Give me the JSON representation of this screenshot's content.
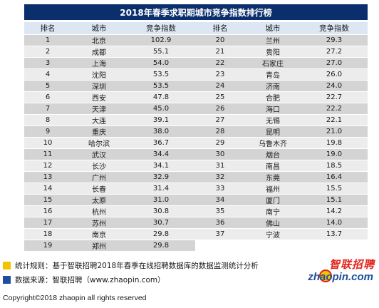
{
  "title": "2018年春季求职期城市竞争指数排行榜",
  "headers": [
    "排名",
    "城市",
    "竞争指数",
    "排名",
    "城市",
    "竞争指数"
  ],
  "rows": [
    {
      "rank": "1",
      "city": "北京",
      "score": "102.9",
      "rank2": "20",
      "city2": "兰州",
      "score2": "29.3"
    },
    {
      "rank": "2",
      "city": "成都",
      "score": "55.1",
      "rank2": "21",
      "city2": "贵阳",
      "score2": "27.2"
    },
    {
      "rank": "3",
      "city": "上海",
      "score": "54.0",
      "rank2": "22",
      "city2": "石家庄",
      "score2": "27.0"
    },
    {
      "rank": "4",
      "city": "沈阳",
      "score": "53.5",
      "rank2": "23",
      "city2": "青岛",
      "score2": "26.0"
    },
    {
      "rank": "5",
      "city": "深圳",
      "score": "53.5",
      "rank2": "24",
      "city2": "济南",
      "score2": "24.0"
    },
    {
      "rank": "6",
      "city": "西安",
      "score": "47.8",
      "rank2": "25",
      "city2": "合肥",
      "score2": "22.7"
    },
    {
      "rank": "7",
      "city": "天津",
      "score": "45.0",
      "rank2": "26",
      "city2": "海口",
      "score2": "22.2"
    },
    {
      "rank": "8",
      "city": "大连",
      "score": "39.1",
      "rank2": "27",
      "city2": "无锡",
      "score2": "22.1"
    },
    {
      "rank": "9",
      "city": "重庆",
      "score": "38.0",
      "rank2": "28",
      "city2": "昆明",
      "score2": "21.0"
    },
    {
      "rank": "10",
      "city": "哈尔滨",
      "score": "36.7",
      "rank2": "29",
      "city2": "乌鲁木齐",
      "score2": "19.8"
    },
    {
      "rank": "11",
      "city": "武汉",
      "score": "34.4",
      "rank2": "30",
      "city2": "烟台",
      "score2": "19.0"
    },
    {
      "rank": "12",
      "city": "长沙",
      "score": "34.1",
      "rank2": "31",
      "city2": "南昌",
      "score2": "18.5"
    },
    {
      "rank": "13",
      "city": "广州",
      "score": "32.9",
      "rank2": "32",
      "city2": "东莞",
      "score2": "16.4"
    },
    {
      "rank": "14",
      "city": "长春",
      "score": "31.4",
      "rank2": "33",
      "city2": "福州",
      "score2": "15.5"
    },
    {
      "rank": "15",
      "city": "太原",
      "score": "31.0",
      "rank2": "34",
      "city2": "厦门",
      "score2": "15.1"
    },
    {
      "rank": "16",
      "city": "杭州",
      "score": "30.8",
      "rank2": "35",
      "city2": "南宁",
      "score2": "14.2"
    },
    {
      "rank": "17",
      "city": "苏州",
      "score": "30.7",
      "rank2": "36",
      "city2": "佛山",
      "score2": "14.0"
    },
    {
      "rank": "18",
      "city": "南京",
      "score": "29.8",
      "rank2": "37",
      "city2": "宁波",
      "score2": "13.7"
    },
    {
      "rank": "19",
      "city": "郑州",
      "score": "29.8",
      "rank2": "",
      "city2": "",
      "score2": ""
    }
  ],
  "notes": {
    "stat_rule": "统计规则：基于智联招聘2018年春季在线招聘数据库的数据监测统计分析",
    "data_source": "数据来源：智联招聘（www.zhaopin.com）"
  },
  "logo": {
    "cn": "智联招聘",
    "en": "zhaopin.com"
  },
  "copyright": "Copyright©2018 zhaopin all rights reserved",
  "colors": {
    "header_navy": "#0b2e6d",
    "accent_yellow": "#f2c400",
    "accent_blue": "#1f4e9e",
    "logo_red": "#e2231a"
  }
}
